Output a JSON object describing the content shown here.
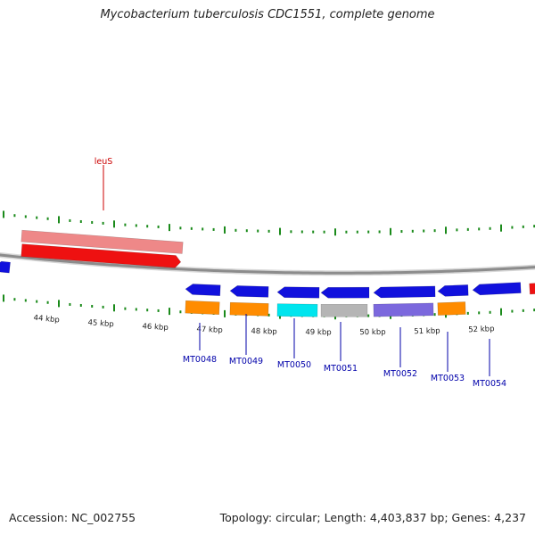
{
  "header": {
    "title": "Mycobacterium tuberculosis CDC1551, complete genome"
  },
  "footer": {
    "accession": "Accession: NC_002755",
    "summary": "Topology: circular; Length: 4,403,837 bp; Genes: 4,237"
  },
  "colors": {
    "backbone": "#8c8c8c",
    "tick": "#1a8a1a",
    "feature_label": "#0000aa",
    "top_label": "#cc0000"
  },
  "ruler": {
    "unit": "kbp",
    "labels": [
      "44 kbp",
      "45 kbp",
      "46 kbp",
      "47 kbp",
      "48 kbp",
      "49 kbp",
      "50 kbp",
      "51 kbp",
      "52 kbp"
    ]
  },
  "features": [
    {
      "name": "leuS",
      "strand": "+",
      "color": "#ee1111",
      "light": "#ee8888",
      "labeled": true
    },
    {
      "name": "left-edge-gene",
      "strand": "-",
      "color": "#1111dd",
      "labeled": false
    },
    {
      "name": "right-edge-gene",
      "strand": "+",
      "color": "#ee1111",
      "labeled": false
    },
    {
      "name": "MT0048",
      "strand": "-",
      "color": "#1111dd",
      "sub": "#ff8c00",
      "labeled": true
    },
    {
      "name": "MT0049",
      "strand": "-",
      "color": "#1111dd",
      "sub": "#ff8c00",
      "labeled": true
    },
    {
      "name": "MT0050",
      "strand": "-",
      "color": "#1111dd",
      "sub": "#00e5ee",
      "labeled": true
    },
    {
      "name": "MT0051",
      "strand": "-",
      "color": "#1111dd",
      "sub": "#b5b5b5",
      "labeled": true
    },
    {
      "name": "MT0052",
      "strand": "-",
      "color": "#1111dd",
      "sub": "#7b68dd",
      "labeled": true
    },
    {
      "name": "MT0053",
      "strand": "-",
      "color": "#1111dd",
      "sub": "#ff8c00",
      "labeled": true
    },
    {
      "name": "MT0054",
      "strand": "-",
      "color": "#1111dd",
      "labeled": true
    }
  ]
}
